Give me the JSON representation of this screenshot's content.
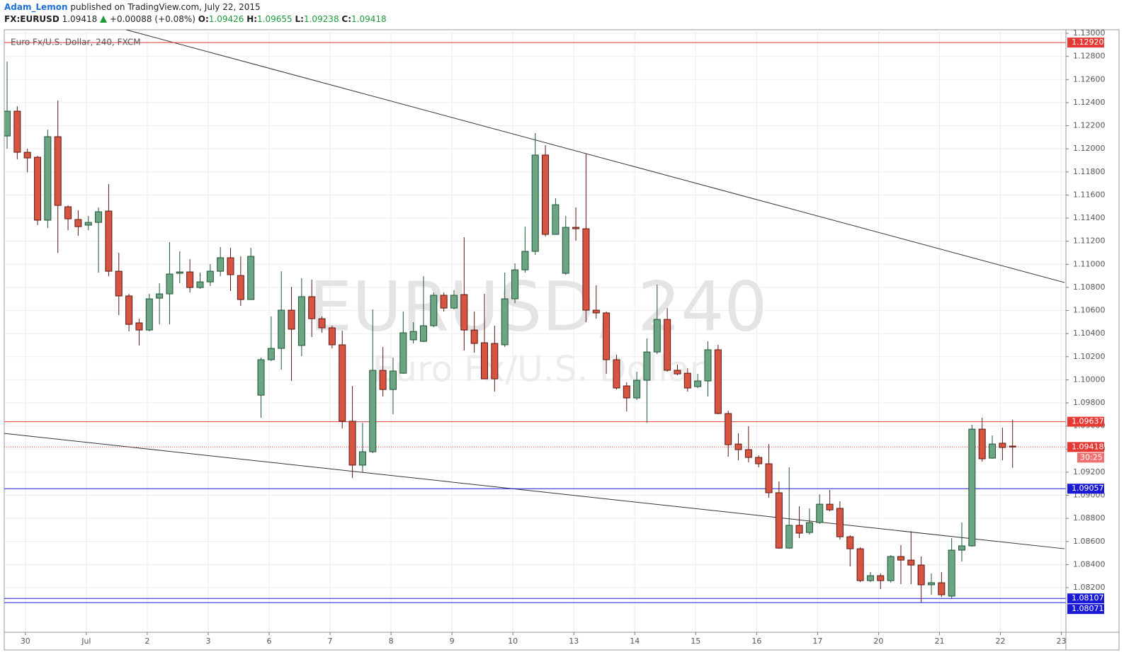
{
  "header": {
    "author": "Adam_Lemon",
    "published": "published on TradingView.com, July 22, 2015",
    "symbol": "FX:EURUSD",
    "last": "1.09418",
    "change": "+0.00088 (+0.08%)",
    "ohlc": [
      {
        "label": "O:",
        "value": "1.09426"
      },
      {
        "label": "H:",
        "value": "1.09655"
      },
      {
        "label": "L:",
        "value": "1.09238"
      },
      {
        "label": "C:",
        "value": "1.09418"
      }
    ]
  },
  "chart_data": {
    "type": "candlestick",
    "legend_title": "Euro Fx/U.S. Dollar, 240, FXCM",
    "watermark": {
      "symbol": "EURUSD, 240",
      "description": "Euro Fx/U.S. Dollar"
    },
    "up_color": "#6ba583",
    "up_border": "#225437",
    "down_color": "#d75442",
    "down_border": "#5b1a13",
    "grid": true,
    "xlim": [
      -0.28,
      104.25
    ],
    "xticks": [
      {
        "value": 1.8,
        "label": "30"
      },
      {
        "value": 7.8,
        "label": "Jul"
      },
      {
        "value": 13.8,
        "label": "2"
      },
      {
        "value": 19.8,
        "label": "3"
      },
      {
        "value": 25.8,
        "label": "6"
      },
      {
        "value": 31.8,
        "label": "7"
      },
      {
        "value": 37.8,
        "label": "8"
      },
      {
        "value": 43.8,
        "label": "9"
      },
      {
        "value": 49.8,
        "label": "10"
      },
      {
        "value": 55.8,
        "label": "13"
      },
      {
        "value": 61.8,
        "label": "14"
      },
      {
        "value": 67.8,
        "label": "15"
      },
      {
        "value": 73.8,
        "label": "16"
      },
      {
        "value": 79.8,
        "label": "17"
      },
      {
        "value": 85.8,
        "label": "20"
      },
      {
        "value": 91.8,
        "label": "21"
      },
      {
        "value": 97.8,
        "label": "22"
      },
      {
        "value": 103.8,
        "label": "23"
      }
    ],
    "ylim": [
      1.07814,
      1.13031
    ],
    "yticks": [
      {
        "value": 1.082,
        "label": "1.08200"
      },
      {
        "value": 1.084,
        "label": "1.08400"
      },
      {
        "value": 1.086,
        "label": "1.08600"
      },
      {
        "value": 1.088,
        "label": "1.08800"
      },
      {
        "value": 1.09,
        "label": "1.09000"
      },
      {
        "value": 1.092,
        "label": "1.09200"
      },
      {
        "value": 1.094,
        "label": "1.09400"
      },
      {
        "value": 1.096,
        "label": "1.09600"
      },
      {
        "value": 1.098,
        "label": "1.09800"
      },
      {
        "value": 1.1,
        "label": "1.10000"
      },
      {
        "value": 1.102,
        "label": "1.10200"
      },
      {
        "value": 1.104,
        "label": "1.10400"
      },
      {
        "value": 1.106,
        "label": "1.10600"
      },
      {
        "value": 1.108,
        "label": "1.10800"
      },
      {
        "value": 1.11,
        "label": "1.11000"
      },
      {
        "value": 1.112,
        "label": "1.11200"
      },
      {
        "value": 1.114,
        "label": "1.11400"
      },
      {
        "value": 1.116,
        "label": "1.11600"
      },
      {
        "value": 1.118,
        "label": "1.11800"
      },
      {
        "value": 1.12,
        "label": "1.12000"
      },
      {
        "value": 1.122,
        "label": "1.12200"
      },
      {
        "value": 1.124,
        "label": "1.12400"
      },
      {
        "value": 1.126,
        "label": "1.12600"
      },
      {
        "value": 1.128,
        "label": "1.12800"
      },
      {
        "value": 1.13,
        "label": "1.13000"
      }
    ],
    "x": [
      0,
      1,
      2,
      3,
      4,
      5,
      6,
      7,
      8,
      9,
      10,
      11,
      12,
      13,
      14,
      15,
      16,
      17,
      18,
      19,
      20,
      21,
      22,
      23,
      24,
      25,
      26,
      27,
      28,
      29,
      30,
      31,
      32,
      33,
      34,
      35,
      36,
      37,
      38,
      39,
      40,
      41,
      42,
      43,
      44,
      45,
      46,
      47,
      48,
      49,
      50,
      51,
      52,
      53,
      54,
      55,
      56,
      57,
      58,
      59,
      60,
      61,
      62,
      63,
      64,
      65,
      66,
      67,
      68,
      69,
      70,
      71,
      72,
      73,
      74,
      75,
      76,
      77,
      78,
      79,
      80,
      81,
      82,
      83,
      84,
      85,
      86,
      87,
      88,
      89,
      90,
      91,
      92,
      93,
      94,
      95,
      96,
      97,
      98,
      99
    ],
    "open": [
      1.12111,
      1.12326,
      1.1197,
      1.11927,
      1.11382,
      1.12105,
      1.11498,
      1.11388,
      1.11339,
      1.11363,
      1.11461,
      1.1094,
      1.10726,
      1.10493,
      1.10431,
      1.10707,
      1.10744,
      1.10922,
      1.10934,
      1.10799,
      1.10848,
      1.1094,
      1.11057,
      1.10903,
      1.10695,
      1.09867,
      1.10174,
      1.10272,
      1.10603,
      1.10297,
      1.1072,
      1.10529,
      1.1045,
      1.10303,
      1.09641,
      1.09261,
      1.09377,
      1.10082,
      1.09916,
      1.10057,
      1.10346,
      1.10333,
      1.10468,
      1.10732,
      1.10621,
      1.10738,
      1.10431,
      1.10321,
      1.10315,
      1.10303,
      1.10701,
      1.10952,
      1.11112,
      1.11946,
      1.11259,
      1.10922,
      1.1132,
      1.11308,
      1.10603,
      1.10579,
      1.10174,
      1.09947,
      1.09843,
      1.09996,
      1.10241,
      1.10523,
      1.10082,
      1.10057,
      1.09941,
      1.0999,
      1.1026,
      1.09708,
      1.09444,
      1.09395,
      1.09328,
      1.09273,
      1.09022,
      1.08543,
      1.0874,
      1.08678,
      1.08764,
      1.08923,
      1.08887,
      1.08641,
      1.08537,
      1.08261,
      1.08304,
      1.08261,
      1.0847,
      1.08439,
      1.08396,
      1.08225,
      1.08243,
      1.08127,
      1.08525,
      1.08562,
      1.09573,
      1.09322,
      1.09451,
      1.09426
    ],
    "high": [
      1.12755,
      1.12368,
      1.12001,
      1.11939,
      1.12166,
      1.12418,
      1.1151,
      1.11467,
      1.11418,
      1.11492,
      1.11694,
      1.111,
      1.10744,
      1.10529,
      1.10744,
      1.10836,
      1.11192,
      1.11112,
      1.11044,
      1.10928,
      1.11002,
      1.11149,
      1.11142,
      1.11069,
      1.11142,
      1.10192,
      1.10548,
      1.1094,
      1.10805,
      1.10879,
      1.10867,
      1.10548,
      1.10468,
      1.10425,
      1.09947,
      1.09628,
      1.10609,
      1.10284,
      1.10192,
      1.10591,
      1.10499,
      1.10897,
      1.10756,
      1.10756,
      1.10775,
      1.11234,
      1.10591,
      1.10744,
      1.10468,
      1.10928,
      1.11008,
      1.11326,
      1.12136,
      1.12031,
      1.11572,
      1.11418,
      1.11492,
      1.11958,
      1.10818,
      1.10591,
      1.10217,
      1.09978,
      1.1007,
      1.10358,
      1.10824,
      1.10621,
      1.10131,
      1.101,
      1.10051,
      1.10333,
      1.10303,
      1.09733,
      1.09536,
      1.09598,
      1.09346,
      1.09444,
      1.0912,
      1.09242,
      1.08905,
      1.08887,
      1.09009,
      1.09046,
      1.08948,
      1.08654,
      1.0855,
      1.08335,
      1.08323,
      1.08482,
      1.08568,
      1.0869,
      1.0847,
      1.08323,
      1.08335,
      1.08629,
      1.08764,
      1.0961,
      1.09671,
      1.09518,
      1.09585,
      1.09655
    ],
    "low": [
      1.12001,
      1.11909,
      1.11798,
      1.11339,
      1.11314,
      1.111,
      1.11296,
      1.11247,
      1.11296,
      1.10928,
      1.10897,
      1.1056,
      1.10419,
      1.10297,
      1.10419,
      1.1048,
      1.1048,
      1.10836,
      1.10756,
      1.10787,
      1.10811,
      1.10897,
      1.10769,
      1.1064,
      1.10695,
      1.09671,
      1.10162,
      1.10088,
      1.0999,
      1.10205,
      1.1037,
      1.10407,
      1.10272,
      1.09579,
      1.0915,
      1.09199,
      1.09365,
      1.09855,
      1.09702,
      1.10051,
      1.10315,
      1.10327,
      1.10456,
      1.10591,
      1.10609,
      1.10254,
      1.10235,
      1.10008,
      1.09898,
      1.10284,
      1.10664,
      1.10928,
      1.11081,
      1.11241,
      1.11259,
      1.1091,
      1.11204,
      1.10499,
      1.10529,
      1.10051,
      1.09916,
      1.09726,
      1.09825,
      1.09628,
      1.10223,
      1.1007,
      1.10039,
      1.09898,
      1.09929,
      1.09855,
      1.09702,
      1.09334,
      1.09303,
      1.09285,
      1.09242,
      1.08979,
      1.08537,
      1.08537,
      1.08629,
      1.0866,
      1.08752,
      1.08862,
      1.08617,
      1.08384,
      1.08249,
      1.08249,
      1.08188,
      1.08243,
      1.08231,
      1.08231,
      1.08071,
      1.08139,
      1.0812,
      1.08108,
      1.08427,
      1.08556,
      1.09291,
      1.09316,
      1.09303,
      1.09238
    ],
    "close": [
      1.12326,
      1.1197,
      1.11921,
      1.11382,
      1.12105,
      1.1151,
      1.11394,
      1.11326,
      1.11363,
      1.11455,
      1.1094,
      1.10726,
      1.1048,
      1.10431,
      1.10701,
      1.10744,
      1.10916,
      1.10934,
      1.10799,
      1.10848,
      1.1094,
      1.11057,
      1.1091,
      1.10695,
      1.11069,
      1.10174,
      1.10272,
      1.10603,
      1.10438,
      1.1072,
      1.10529,
      1.1045,
      1.10303,
      1.09641,
      1.09261,
      1.09377,
      1.10082,
      1.09916,
      1.10076,
      1.10407,
      1.10419,
      1.10468,
      1.10732,
      1.10621,
      1.10732,
      1.10431,
      1.10315,
      1.10008,
      1.10008,
      1.10701,
      1.10952,
      1.11112,
      1.11946,
      1.11259,
      1.11516,
      1.1132,
      1.11308,
      1.10603,
      1.10579,
      1.10174,
      1.09929,
      1.09843,
      1.09996,
      1.10241,
      1.10523,
      1.10082,
      1.10051,
      1.09929,
      1.0999,
      1.1026,
      1.09708,
      1.09438,
      1.09395,
      1.09328,
      1.09273,
      1.09022,
      1.08543,
      1.0874,
      1.08672,
      1.08764,
      1.08923,
      1.08874,
      1.08641,
      1.08537,
      1.08261,
      1.08304,
      1.08261,
      1.0847,
      1.08439,
      1.08396,
      1.08225,
      1.08243,
      1.08139,
      1.08525,
      1.08562,
      1.09573,
      1.09316,
      1.09444,
      1.09414,
      1.09418
    ],
    "levels": [
      {
        "value": 1.1292,
        "label": "1.12920",
        "color": "#e53935"
      },
      {
        "value": 1.09637,
        "label": "1.09637",
        "color": "#e53935"
      },
      {
        "value": 1.09057,
        "label": "1.09057",
        "color": "#1a1ad6"
      },
      {
        "value": 1.08107,
        "label": "1.08107",
        "color": "#1a1ad6"
      },
      {
        "value": 1.08071,
        "label": "1.08071",
        "color": "#1a1ad6"
      }
    ],
    "last_price": {
      "value": 1.09418,
      "label": "1.09418",
      "countdown": "30:25",
      "color": "#e53935"
    },
    "trendlines": [
      {
        "x": [
          11.72,
          104.12
        ],
        "y": [
          1.13031,
          1.10842
        ],
        "color": "#333333"
      },
      {
        "x": [
          -0.28,
          104.12
        ],
        "y": [
          1.09536,
          1.08537
        ],
        "color": "#333333"
      }
    ]
  }
}
